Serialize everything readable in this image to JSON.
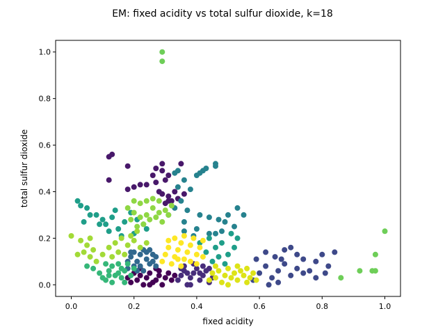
{
  "chart_data": {
    "type": "scatter",
    "title": "EM: fixed acidity vs total sulfur dioxide, k=18",
    "xlabel": "fixed acidity",
    "ylabel": "total sulfur dioxide",
    "xlim": [
      -0.05,
      1.05
    ],
    "ylim": [
      -0.05,
      1.05
    ],
    "x_ticks": [
      0.0,
      0.2,
      0.4,
      0.6,
      0.8,
      1.0
    ],
    "y_ticks": [
      0.0,
      0.2,
      0.4,
      0.6,
      0.8,
      1.0
    ],
    "x_tick_labels": [
      "0.0",
      "0.2",
      "0.4",
      "0.6",
      "0.8",
      "1.0"
    ],
    "y_tick_labels": [
      "0.0",
      "0.2",
      "0.4",
      "0.6",
      "0.8",
      "1.0"
    ],
    "grid": false,
    "legend": "none",
    "colormap": "viridis",
    "num_clusters": 18,
    "series": [
      {
        "color": "#440154",
        "points": [
          [
            0.19,
            0.01
          ],
          [
            0.21,
            0.02
          ],
          [
            0.22,
            0.04
          ],
          [
            0.23,
            0.0
          ],
          [
            0.24,
            0.03
          ],
          [
            0.25,
            0.05
          ],
          [
            0.26,
            0.01
          ],
          [
            0.27,
            0.02
          ],
          [
            0.28,
            0.04
          ],
          [
            0.29,
            0.0
          ],
          [
            0.3,
            0.03
          ],
          [
            0.31,
            0.05
          ],
          [
            0.32,
            0.02
          ],
          [
            0.2,
            0.05
          ],
          [
            0.25,
            0.0
          ],
          [
            0.28,
            0.06
          ],
          [
            0.22,
            0.07
          ],
          [
            0.33,
            0.04
          ],
          [
            0.18,
            0.03
          ],
          [
            0.27,
            0.07
          ]
        ]
      },
      {
        "color": "#48186a",
        "points": [
          [
            0.13,
            0.56
          ],
          [
            0.12,
            0.55
          ],
          [
            0.18,
            0.51
          ],
          [
            0.27,
            0.5
          ],
          [
            0.29,
            0.49
          ],
          [
            0.31,
            0.47
          ],
          [
            0.3,
            0.45
          ],
          [
            0.27,
            0.44
          ],
          [
            0.24,
            0.43
          ],
          [
            0.22,
            0.43
          ],
          [
            0.2,
            0.42
          ],
          [
            0.18,
            0.41
          ],
          [
            0.28,
            0.4
          ],
          [
            0.29,
            0.39
          ],
          [
            0.31,
            0.38
          ],
          [
            0.32,
            0.36
          ],
          [
            0.3,
            0.35
          ],
          [
            0.33,
            0.4
          ],
          [
            0.34,
            0.37
          ],
          [
            0.36,
            0.39
          ],
          [
            0.12,
            0.45
          ],
          [
            0.35,
            0.52
          ],
          [
            0.26,
            0.47
          ],
          [
            0.29,
            0.52
          ],
          [
            0.31,
            0.36
          ]
        ]
      },
      {
        "color": "#472d7b",
        "points": [
          [
            0.34,
            0.02
          ],
          [
            0.35,
            0.04
          ],
          [
            0.36,
            0.06
          ],
          [
            0.37,
            0.0
          ],
          [
            0.38,
            0.03
          ],
          [
            0.39,
            0.05
          ],
          [
            0.4,
            0.07
          ],
          [
            0.41,
            0.02
          ],
          [
            0.42,
            0.04
          ],
          [
            0.43,
            0.06
          ],
          [
            0.44,
            0.01
          ],
          [
            0.45,
            0.03
          ],
          [
            0.36,
            0.08
          ],
          [
            0.39,
            0.09
          ],
          [
            0.42,
            0.08
          ],
          [
            0.35,
            0.07
          ],
          [
            0.38,
            0.0
          ],
          [
            0.41,
            0.05
          ],
          [
            0.44,
            0.07
          ],
          [
            0.37,
            0.05
          ]
        ]
      },
      {
        "color": "#3e4989",
        "points": [
          [
            0.58,
            0.02
          ],
          [
            0.6,
            0.05
          ],
          [
            0.62,
            0.08
          ],
          [
            0.64,
            0.03
          ],
          [
            0.66,
            0.06
          ],
          [
            0.68,
            0.09
          ],
          [
            0.7,
            0.04
          ],
          [
            0.72,
            0.07
          ],
          [
            0.74,
            0.11
          ],
          [
            0.76,
            0.06
          ],
          [
            0.78,
            0.1
          ],
          [
            0.8,
            0.13
          ],
          [
            0.82,
            0.08
          ],
          [
            0.84,
            0.14
          ],
          [
            0.72,
            0.13
          ],
          [
            0.68,
            0.15
          ],
          [
            0.65,
            0.12
          ],
          [
            0.62,
            0.14
          ],
          [
            0.59,
            0.11
          ],
          [
            0.7,
            0.16
          ],
          [
            0.74,
            0.05
          ],
          [
            0.66,
            0.01
          ],
          [
            0.63,
            0.0
          ],
          [
            0.67,
            0.11
          ],
          [
            0.81,
            0.05
          ],
          [
            0.78,
            0.03
          ]
        ]
      },
      {
        "color": "#31688e",
        "points": [
          [
            0.18,
            0.1
          ],
          [
            0.19,
            0.12
          ],
          [
            0.2,
            0.14
          ],
          [
            0.21,
            0.1
          ],
          [
            0.22,
            0.13
          ],
          [
            0.23,
            0.15
          ],
          [
            0.24,
            0.11
          ],
          [
            0.25,
            0.09
          ],
          [
            0.26,
            0.13
          ],
          [
            0.27,
            0.12
          ],
          [
            0.2,
            0.08
          ],
          [
            0.22,
            0.08
          ],
          [
            0.24,
            0.14
          ],
          [
            0.26,
            0.1
          ],
          [
            0.19,
            0.14
          ],
          [
            0.23,
            0.06
          ],
          [
            0.25,
            0.15
          ],
          [
            0.21,
            0.06
          ],
          [
            0.27,
            0.08
          ],
          [
            0.18,
            0.07
          ]
        ]
      },
      {
        "color": "#26828e",
        "points": [
          [
            0.33,
            0.48
          ],
          [
            0.34,
            0.49
          ],
          [
            0.41,
            0.48
          ],
          [
            0.42,
            0.49
          ],
          [
            0.43,
            0.5
          ],
          [
            0.46,
            0.52
          ],
          [
            0.46,
            0.51
          ],
          [
            0.34,
            0.42
          ],
          [
            0.36,
            0.45
          ],
          [
            0.4,
            0.47
          ],
          [
            0.38,
            0.41
          ],
          [
            0.35,
            0.36
          ],
          [
            0.33,
            0.33
          ],
          [
            0.37,
            0.32
          ],
          [
            0.41,
            0.3
          ],
          [
            0.44,
            0.29
          ],
          [
            0.47,
            0.28
          ],
          [
            0.49,
            0.27
          ],
          [
            0.52,
            0.25
          ],
          [
            0.55,
            0.3
          ],
          [
            0.5,
            0.3
          ],
          [
            0.46,
            0.22
          ],
          [
            0.4,
            0.24
          ],
          [
            0.36,
            0.27
          ],
          [
            0.39,
            0.21
          ],
          [
            0.44,
            0.22
          ],
          [
            0.48,
            0.23
          ],
          [
            0.53,
            0.33
          ],
          [
            0.31,
            0.3
          ],
          [
            0.36,
            0.23
          ]
        ]
      },
      {
        "color": "#1f9e89",
        "points": [
          [
            0.02,
            0.36
          ],
          [
            0.05,
            0.33
          ],
          [
            0.06,
            0.3
          ],
          [
            0.04,
            0.27
          ],
          [
            0.08,
            0.3
          ],
          [
            0.1,
            0.28
          ],
          [
            0.11,
            0.26
          ],
          [
            0.13,
            0.29
          ],
          [
            0.15,
            0.24
          ],
          [
            0.17,
            0.27
          ],
          [
            0.19,
            0.31
          ],
          [
            0.21,
            0.28
          ],
          [
            0.23,
            0.26
          ],
          [
            0.14,
            0.32
          ],
          [
            0.09,
            0.26
          ],
          [
            0.12,
            0.23
          ],
          [
            0.16,
            0.21
          ],
          [
            0.2,
            0.22
          ],
          [
            0.24,
            0.24
          ],
          [
            0.03,
            0.34
          ],
          [
            0.44,
            0.2
          ],
          [
            0.46,
            0.16
          ],
          [
            0.48,
            0.18
          ],
          [
            0.5,
            0.13
          ],
          [
            0.52,
            0.16
          ],
          [
            0.47,
            0.12
          ],
          [
            0.43,
            0.14
          ],
          [
            0.41,
            0.18
          ],
          [
            0.45,
            0.1
          ],
          [
            0.49,
            0.09
          ],
          [
            0.53,
            0.2
          ],
          [
            0.51,
            0.22
          ]
        ]
      },
      {
        "color": "#35b779",
        "points": [
          [
            0.05,
            0.08
          ],
          [
            0.07,
            0.07
          ],
          [
            0.09,
            0.05
          ],
          [
            0.1,
            0.03
          ],
          [
            0.11,
            0.02
          ],
          [
            0.12,
            0.06
          ],
          [
            0.13,
            0.08
          ],
          [
            0.14,
            0.04
          ],
          [
            0.15,
            0.09
          ],
          [
            0.16,
            0.03
          ],
          [
            0.17,
            0.06
          ],
          [
            0.18,
            0.09
          ],
          [
            0.19,
            0.04
          ],
          [
            0.2,
            0.07
          ],
          [
            0.11,
            0.09
          ],
          [
            0.13,
            0.01
          ],
          [
            0.15,
            0.05
          ],
          [
            0.17,
            0.01
          ],
          [
            0.12,
            0.04
          ],
          [
            0.16,
            0.07
          ]
        ]
      },
      {
        "color": "#6ece58",
        "points": [
          [
            0.29,
            1.0
          ],
          [
            0.29,
            0.96
          ],
          [
            0.92,
            0.06
          ],
          [
            0.86,
            0.03
          ],
          [
            0.96,
            0.06
          ],
          [
            0.97,
            0.06
          ],
          [
            0.97,
            0.13
          ],
          [
            1.0,
            0.23
          ]
        ]
      },
      {
        "color": "#a2da37",
        "points": [
          [
            0.0,
            0.21
          ],
          [
            0.03,
            0.19
          ],
          [
            0.05,
            0.17
          ],
          [
            0.04,
            0.14
          ],
          [
            0.06,
            0.12
          ],
          [
            0.08,
            0.1
          ],
          [
            0.06,
            0.2
          ],
          [
            0.12,
            0.16
          ],
          [
            0.14,
            0.18
          ],
          [
            0.16,
            0.2
          ],
          [
            0.18,
            0.17
          ],
          [
            0.2,
            0.19
          ],
          [
            0.22,
            0.16
          ],
          [
            0.24,
            0.18
          ],
          [
            0.17,
            0.13
          ],
          [
            0.15,
            0.14
          ],
          [
            0.13,
            0.12
          ],
          [
            0.19,
            0.21
          ],
          [
            0.21,
            0.23
          ],
          [
            0.1,
            0.13
          ],
          [
            0.07,
            0.15
          ],
          [
            0.02,
            0.13
          ]
        ]
      },
      {
        "color": "#8fd744",
        "points": [
          [
            0.18,
            0.33
          ],
          [
            0.2,
            0.31
          ],
          [
            0.22,
            0.35
          ],
          [
            0.24,
            0.3
          ],
          [
            0.26,
            0.33
          ],
          [
            0.28,
            0.36
          ],
          [
            0.3,
            0.32
          ],
          [
            0.25,
            0.28
          ],
          [
            0.23,
            0.26
          ],
          [
            0.21,
            0.25
          ],
          [
            0.27,
            0.29
          ],
          [
            0.29,
            0.27
          ],
          [
            0.31,
            0.3
          ],
          [
            0.19,
            0.28
          ],
          [
            0.32,
            0.34
          ],
          [
            0.26,
            0.37
          ],
          [
            0.22,
            0.29
          ],
          [
            0.28,
            0.31
          ],
          [
            0.24,
            0.36
          ],
          [
            0.2,
            0.36
          ]
        ]
      },
      {
        "color": "#fde725",
        "points": [
          [
            0.29,
            0.1
          ],
          [
            0.3,
            0.13
          ],
          [
            0.31,
            0.16
          ],
          [
            0.32,
            0.09
          ],
          [
            0.33,
            0.12
          ],
          [
            0.34,
            0.15
          ],
          [
            0.35,
            0.18
          ],
          [
            0.36,
            0.11
          ],
          [
            0.37,
            0.14
          ],
          [
            0.38,
            0.17
          ],
          [
            0.39,
            0.2
          ],
          [
            0.4,
            0.13
          ],
          [
            0.41,
            0.16
          ],
          [
            0.42,
            0.19
          ],
          [
            0.33,
            0.2
          ],
          [
            0.35,
            0.08
          ],
          [
            0.38,
            0.1
          ],
          [
            0.4,
            0.09
          ],
          [
            0.31,
            0.19
          ],
          [
            0.36,
            0.21
          ],
          [
            0.42,
            0.12
          ],
          [
            0.34,
            0.11
          ]
        ]
      },
      {
        "color": "#dde318",
        "points": [
          [
            0.44,
            0.02
          ],
          [
            0.45,
            0.05
          ],
          [
            0.46,
            0.03
          ],
          [
            0.47,
            0.06
          ],
          [
            0.48,
            0.01
          ],
          [
            0.49,
            0.04
          ],
          [
            0.5,
            0.07
          ],
          [
            0.51,
            0.03
          ],
          [
            0.52,
            0.05
          ],
          [
            0.53,
            0.02
          ],
          [
            0.54,
            0.06
          ],
          [
            0.55,
            0.04
          ],
          [
            0.56,
            0.07
          ],
          [
            0.57,
            0.03
          ],
          [
            0.58,
            0.05
          ],
          [
            0.59,
            0.02
          ],
          [
            0.5,
            0.0
          ],
          [
            0.46,
            0.08
          ],
          [
            0.53,
            0.08
          ],
          [
            0.56,
            0.01
          ]
        ]
      }
    ]
  }
}
